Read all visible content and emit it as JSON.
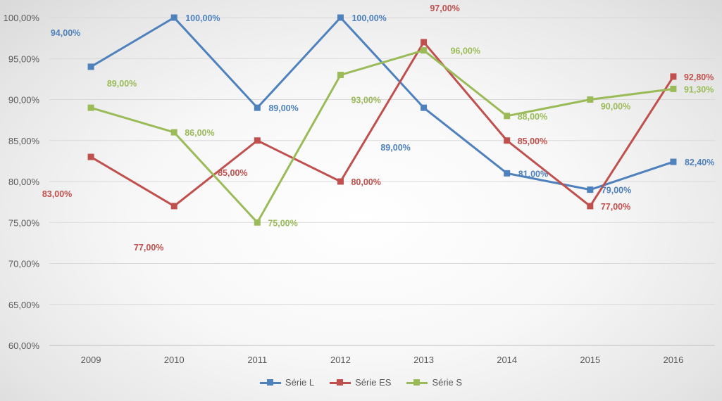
{
  "chart_data": {
    "type": "line",
    "categories": [
      "2009",
      "2010",
      "2011",
      "2012",
      "2013",
      "2014",
      "2015",
      "2016"
    ],
    "ylim": [
      60,
      100
    ],
    "yticks": [
      "60,00%",
      "65,00%",
      "70,00%",
      "75,00%",
      "80,00%",
      "85,00%",
      "90,00%",
      "95,00%",
      "100,00%"
    ],
    "grid": true,
    "legend_position": "bottom",
    "series": [
      {
        "name": "Série L",
        "color": "#4f81bd",
        "values": [
          94,
          100,
          89,
          100,
          89,
          81,
          79,
          82.4
        ],
        "labels": [
          "94,00%",
          "100,00%",
          "89,00%",
          "100,00%",
          "89,00%",
          "81,00%",
          "79,00%",
          "82,40%"
        ]
      },
      {
        "name": "Série ES",
        "color": "#c0504d",
        "values": [
          83,
          77,
          85,
          80,
          97,
          85,
          77,
          92.8
        ],
        "labels": [
          "83,00%",
          "77,00%",
          "85,00%",
          "80,00%",
          "97,00%",
          "85,00%",
          "77,00%",
          "92,80%"
        ]
      },
      {
        "name": "Série S",
        "color": "#9bbb59",
        "values": [
          89,
          86,
          75,
          93,
          96,
          88,
          90,
          91.3
        ],
        "labels": [
          "89,00%",
          "86,00%",
          "75,00%",
          "93,00%",
          "96,00%",
          "88,00%",
          "90,00%",
          "91,30%"
        ]
      }
    ]
  }
}
